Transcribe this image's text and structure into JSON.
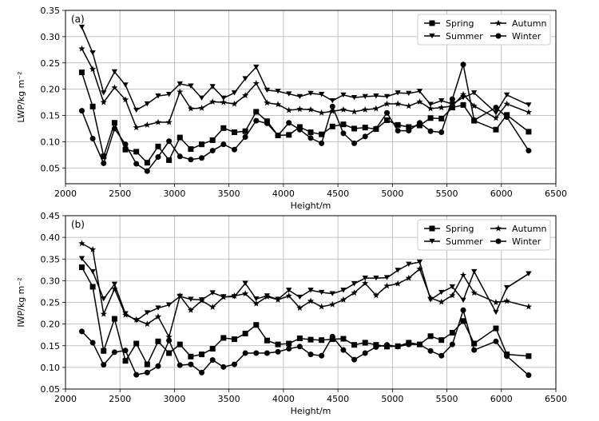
{
  "chart_data": [
    {
      "type": "line",
      "panel_label": "(a)",
      "xlabel": "Height/m",
      "ylabel": "LWP/kg m⁻²",
      "xlim": [
        2000,
        6500
      ],
      "ylim": [
        0.02,
        0.35
      ],
      "xticks": [
        2000,
        2500,
        3000,
        3500,
        4000,
        4500,
        5000,
        5500,
        6000,
        6500
      ],
      "yticks": [
        0.05,
        0.1,
        0.15,
        0.2,
        0.25,
        0.3,
        0.35
      ],
      "ytick_labels": [
        "0.05",
        "0.10",
        "0.15",
        "0.20",
        "0.25",
        "0.30",
        "0.35"
      ],
      "grid": true,
      "legend_position": "top-right",
      "series": [
        {
          "name": "Spring",
          "marker": "square",
          "x": [
            2150,
            2250,
            2350,
            2450,
            2550,
            2650,
            2750,
            2850,
            2950,
            3050,
            3150,
            3250,
            3350,
            3450,
            3550,
            3650,
            3750,
            3850,
            3950,
            4050,
            4150,
            4250,
            4350,
            4450,
            4550,
            4650,
            4750,
            4850,
            4950,
            5050,
            5150,
            5250,
            5350,
            5450,
            5550,
            5650,
            5750,
            5950,
            6050,
            6250
          ],
          "values": [
            0.232,
            0.167,
            0.072,
            0.136,
            0.085,
            0.081,
            0.06,
            0.091,
            0.065,
            0.108,
            0.086,
            0.095,
            0.103,
            0.126,
            0.118,
            0.12,
            0.157,
            0.139,
            0.112,
            0.113,
            0.128,
            0.118,
            0.114,
            0.129,
            0.133,
            0.125,
            0.127,
            0.124,
            0.141,
            0.132,
            0.128,
            0.131,
            0.145,
            0.144,
            0.165,
            0.17,
            0.14,
            0.123,
            0.151,
            0.119
          ]
        },
        {
          "name": "Summer",
          "marker": "triangle-down",
          "x": [
            2150,
            2250,
            2350,
            2450,
            2550,
            2650,
            2750,
            2850,
            2950,
            3050,
            3150,
            3250,
            3350,
            3450,
            3550,
            3650,
            3750,
            3850,
            3950,
            4050,
            4150,
            4250,
            4350,
            4450,
            4550,
            4650,
            4750,
            4850,
            4950,
            5050,
            5150,
            5250,
            5350,
            5450,
            5550,
            5650,
            5750,
            5950,
            6050,
            6250
          ],
          "values": [
            0.318,
            0.269,
            0.193,
            0.233,
            0.208,
            0.16,
            0.172,
            0.187,
            0.19,
            0.21,
            0.206,
            0.183,
            0.205,
            0.183,
            0.193,
            0.22,
            0.242,
            0.198,
            0.196,
            0.191,
            0.186,
            0.192,
            0.19,
            0.178,
            0.189,
            0.184,
            0.186,
            0.187,
            0.186,
            0.193,
            0.192,
            0.196,
            0.171,
            0.178,
            0.172,
            0.184,
            0.193,
            0.155,
            0.189,
            0.17
          ]
        },
        {
          "name": "Autumn",
          "marker": "star",
          "x": [
            2150,
            2250,
            2350,
            2450,
            2550,
            2650,
            2750,
            2850,
            2950,
            3050,
            3150,
            3250,
            3350,
            3450,
            3550,
            3650,
            3750,
            3850,
            3950,
            4050,
            4150,
            4250,
            4350,
            4450,
            4550,
            4650,
            4750,
            4850,
            4950,
            5050,
            5150,
            5250,
            5350,
            5450,
            5550,
            5650,
            5750,
            5950,
            6050,
            6250
          ],
          "values": [
            0.277,
            0.238,
            0.175,
            0.203,
            0.18,
            0.127,
            0.132,
            0.137,
            0.137,
            0.195,
            0.163,
            0.164,
            0.176,
            0.175,
            0.172,
            0.188,
            0.211,
            0.174,
            0.171,
            0.16,
            0.162,
            0.161,
            0.155,
            0.158,
            0.161,
            0.157,
            0.161,
            0.163,
            0.172,
            0.172,
            0.168,
            0.176,
            0.163,
            0.165,
            0.168,
            0.19,
            0.168,
            0.145,
            0.172,
            0.156
          ]
        },
        {
          "name": "Winter",
          "marker": "circle",
          "x": [
            2150,
            2250,
            2350,
            2450,
            2550,
            2650,
            2750,
            2850,
            2950,
            3050,
            3150,
            3250,
            3350,
            3450,
            3550,
            3650,
            3750,
            3850,
            3950,
            4050,
            4150,
            4250,
            4350,
            4450,
            4550,
            4650,
            4750,
            4850,
            4950,
            5050,
            5150,
            5250,
            5350,
            5450,
            5550,
            5650,
            5750,
            5950,
            6050,
            6250
          ],
          "values": [
            0.159,
            0.106,
            0.059,
            0.125,
            0.095,
            0.058,
            0.044,
            0.071,
            0.101,
            0.072,
            0.066,
            0.069,
            0.083,
            0.095,
            0.085,
            0.109,
            0.14,
            0.135,
            0.112,
            0.136,
            0.123,
            0.107,
            0.097,
            0.167,
            0.116,
            0.097,
            0.11,
            0.125,
            0.155,
            0.121,
            0.121,
            0.136,
            0.12,
            0.118,
            0.181,
            0.247,
            0.141,
            0.165,
            0.147,
            0.083
          ]
        }
      ]
    },
    {
      "type": "line",
      "panel_label": "(b)",
      "xlabel": "Height/m",
      "ylabel": "IWP/kg m⁻²",
      "xlim": [
        2000,
        6500
      ],
      "ylim": [
        0.05,
        0.45
      ],
      "xticks": [
        2000,
        2500,
        3000,
        3500,
        4000,
        4500,
        5000,
        5500,
        6000,
        6500
      ],
      "yticks": [
        0.05,
        0.1,
        0.15,
        0.2,
        0.25,
        0.3,
        0.35,
        0.4,
        0.45
      ],
      "ytick_labels": [
        "0.05",
        "0.10",
        "0.15",
        "0.20",
        "0.25",
        "0.30",
        "0.35",
        "0.40",
        "0.45"
      ],
      "grid": true,
      "legend_position": "top-right",
      "series": [
        {
          "name": "Spring",
          "marker": "square",
          "x": [
            2150,
            2250,
            2350,
            2450,
            2550,
            2650,
            2750,
            2850,
            2950,
            3050,
            3150,
            3250,
            3350,
            3450,
            3550,
            3650,
            3750,
            3850,
            3950,
            4050,
            4150,
            4250,
            4350,
            4450,
            4550,
            4650,
            4750,
            4850,
            4950,
            5050,
            5150,
            5250,
            5350,
            5450,
            5550,
            5650,
            5750,
            5950,
            6050,
            6250
          ],
          "values": [
            0.331,
            0.286,
            0.138,
            0.212,
            0.115,
            0.155,
            0.107,
            0.16,
            0.133,
            0.153,
            0.125,
            0.13,
            0.143,
            0.168,
            0.165,
            0.178,
            0.198,
            0.162,
            0.153,
            0.155,
            0.167,
            0.164,
            0.163,
            0.165,
            0.166,
            0.152,
            0.157,
            0.152,
            0.148,
            0.149,
            0.157,
            0.153,
            0.172,
            0.163,
            0.18,
            0.207,
            0.155,
            0.19,
            0.13,
            0.126
          ]
        },
        {
          "name": "Summer",
          "marker": "triangle-down",
          "x": [
            2150,
            2250,
            2350,
            2450,
            2550,
            2650,
            2750,
            2850,
            2950,
            3050,
            3150,
            3250,
            3350,
            3450,
            3550,
            3650,
            3750,
            3850,
            3950,
            4050,
            4150,
            4250,
            4350,
            4450,
            4550,
            4650,
            4750,
            4850,
            4950,
            5050,
            5150,
            5250,
            5350,
            5450,
            5550,
            5650,
            5750,
            5950,
            6050,
            6250
          ],
          "values": [
            0.351,
            0.321,
            0.258,
            0.292,
            0.224,
            0.208,
            0.226,
            0.237,
            0.244,
            0.264,
            0.257,
            0.256,
            0.272,
            0.263,
            0.263,
            0.294,
            0.258,
            0.265,
            0.257,
            0.278,
            0.262,
            0.278,
            0.273,
            0.27,
            0.278,
            0.293,
            0.306,
            0.306,
            0.307,
            0.324,
            0.338,
            0.343,
            0.256,
            0.273,
            0.286,
            0.255,
            0.321,
            0.227,
            0.284,
            0.316
          ]
        },
        {
          "name": "Autumn",
          "marker": "star",
          "x": [
            2150,
            2250,
            2350,
            2450,
            2550,
            2650,
            2750,
            2850,
            2950,
            3050,
            3150,
            3250,
            3350,
            3450,
            3550,
            3650,
            3750,
            3850,
            3950,
            4050,
            4150,
            4250,
            4350,
            4450,
            4550,
            4650,
            4750,
            4850,
            4950,
            5050,
            5150,
            5250,
            5350,
            5450,
            5550,
            5650,
            5750,
            5950,
            6050,
            6250
          ],
          "values": [
            0.386,
            0.372,
            0.223,
            0.281,
            0.221,
            0.21,
            0.2,
            0.217,
            0.17,
            0.265,
            0.232,
            0.254,
            0.239,
            0.262,
            0.265,
            0.27,
            0.247,
            0.263,
            0.256,
            0.265,
            0.237,
            0.253,
            0.24,
            0.245,
            0.256,
            0.272,
            0.294,
            0.266,
            0.288,
            0.293,
            0.306,
            0.327,
            0.26,
            0.251,
            0.266,
            0.313,
            0.272,
            0.25,
            0.253,
            0.24
          ]
        },
        {
          "name": "Winter",
          "marker": "circle",
          "x": [
            2150,
            2250,
            2350,
            2450,
            2550,
            2650,
            2750,
            2850,
            2950,
            3050,
            3150,
            3250,
            3350,
            3450,
            3550,
            3650,
            3750,
            3850,
            3950,
            4050,
            4150,
            4250,
            4350,
            4450,
            4550,
            4650,
            4750,
            4850,
            4950,
            5050,
            5150,
            5250,
            5350,
            5450,
            5550,
            5650,
            5750,
            5950,
            6050,
            6250
          ],
          "values": [
            0.183,
            0.157,
            0.106,
            0.135,
            0.139,
            0.083,
            0.088,
            0.103,
            0.162,
            0.105,
            0.107,
            0.088,
            0.117,
            0.101,
            0.107,
            0.133,
            0.133,
            0.133,
            0.136,
            0.143,
            0.148,
            0.13,
            0.127,
            0.171,
            0.14,
            0.118,
            0.133,
            0.147,
            0.152,
            0.148,
            0.153,
            0.153,
            0.138,
            0.127,
            0.153,
            0.232,
            0.14,
            0.16,
            0.126,
            0.082
          ]
        }
      ]
    }
  ]
}
